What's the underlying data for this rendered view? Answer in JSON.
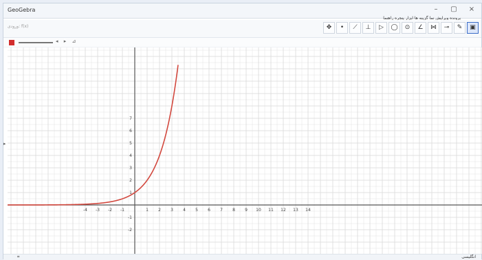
{
  "window": {
    "title": "GeoGebra"
  },
  "window_controls": {
    "minimize": "–",
    "maximize": "▢",
    "close": "×"
  },
  "menubar": {
    "text": "پرونده ویرایش نما گزینه ها ابزار پنجره راهنما"
  },
  "toolbar": {
    "input_label": "ورودی: f(x)",
    "tools": [
      {
        "name": "move-tool",
        "glyph": "✥"
      },
      {
        "name": "point-tool",
        "glyph": "•"
      },
      {
        "name": "line-tool",
        "glyph": "⟋"
      },
      {
        "name": "perpendicular-tool",
        "glyph": "⊥"
      },
      {
        "name": "polygon-tool",
        "glyph": "▷"
      },
      {
        "name": "circle-tool",
        "glyph": "◯"
      },
      {
        "name": "ellipse-tool",
        "glyph": "⊙"
      },
      {
        "name": "angle-tool",
        "glyph": "∠"
      },
      {
        "name": "reflect-tool",
        "glyph": "⋈"
      },
      {
        "name": "slider-tool",
        "glyph": "⊸"
      },
      {
        "name": "pen-tool",
        "glyph": "✎"
      },
      {
        "name": "graphics-tool",
        "glyph": "▣"
      }
    ]
  },
  "stylebar": {
    "icons": "◂ ▸ ⊿"
  },
  "graph": {
    "function": "2^x",
    "curve_color": "#d2473d",
    "axis_color": "#555555",
    "grid_color": "#d9d9d9",
    "x_range": [
      -5,
      14
    ],
    "y_range": [
      -2.5,
      7
    ],
    "x_ticks": [
      -4,
      -3,
      -2,
      -1,
      1,
      2,
      3,
      4,
      5,
      6,
      7,
      8,
      9,
      10,
      11,
      12,
      13,
      14
    ],
    "y_ticks": [
      -2,
      -1,
      1,
      2,
      3,
      4,
      5,
      6,
      7
    ]
  },
  "status": {
    "left": "⌗",
    "right": "انگلیسی"
  }
}
